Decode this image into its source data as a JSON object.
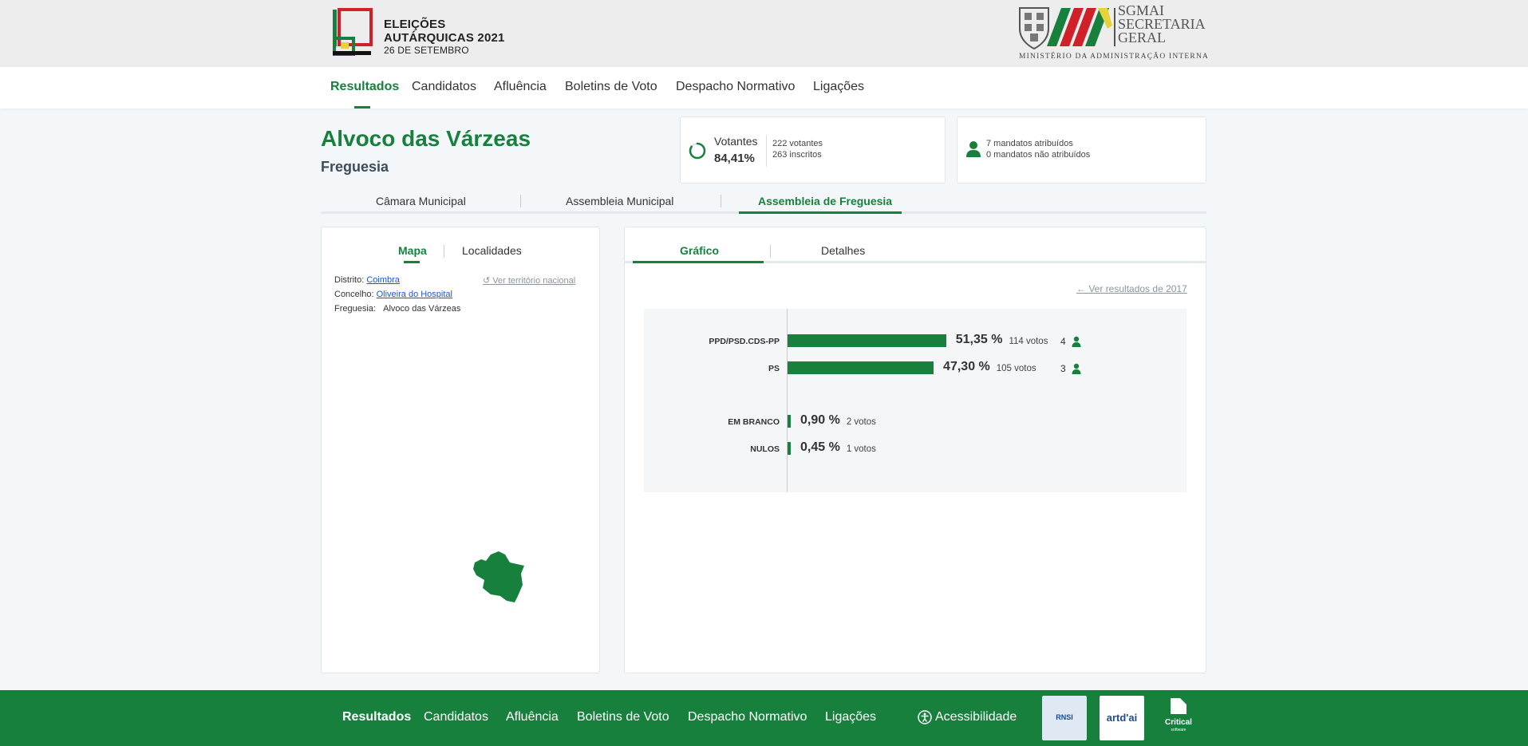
{
  "header": {
    "logo_line1": "ELEIÇÕES",
    "logo_line2": "AUTÁRQUICAS 2021",
    "logo_date": "26 DE SETEMBRO",
    "sgmai_line1": "SGMAI",
    "sgmai_line2": "SECRETARIA",
    "sgmai_line3": "GERAL",
    "sgmai_sub": "MINISTÉRIO DA ADMINISTRAÇÃO INTERNA"
  },
  "nav": {
    "items": [
      "Resultados",
      "Candidatos",
      "Afluência",
      "Boletins de Voto",
      "Despacho Normativo",
      "Ligações"
    ],
    "active": "Resultados"
  },
  "place": {
    "title": "Alvoco das Várzeas",
    "type": "Freguesia"
  },
  "turnout": {
    "label": "Votantes",
    "percent": "84,41%",
    "voters": "222 votantes",
    "registered": "263 inscritos",
    "fraction": 0.8441
  },
  "mandates_summary": {
    "assigned": "7 mandatos atribuídos",
    "unassigned": "0 mandatos não atribuídos"
  },
  "election_tabs": {
    "items": [
      "Câmara Municipal",
      "Assembleia Municipal",
      "Assembleia de Freguesia"
    ],
    "active": "Assembleia de Freguesia"
  },
  "left_panel": {
    "tabs": [
      "Mapa",
      "Localidades"
    ],
    "active": "Mapa",
    "distrito_label": "Distrito:",
    "distrito_value": "Coimbra",
    "concelho_label": "Concelho:",
    "concelho_value": "Oliveira do Hospital",
    "freguesia_label": "Freguesia:",
    "freguesia_value": "Alvoco das Várzeas",
    "ver_territorio": "Ver território nacional",
    "map_color": "#17803d"
  },
  "right_panel": {
    "tabs": [
      "Gráfico",
      "Detalhes"
    ],
    "active": "Gráfico",
    "prev_results": "Ver resultados de 2017"
  },
  "chart_data": {
    "type": "bar",
    "orientation": "horizontal",
    "categories": [
      "PPD/PSD.CDS-PP",
      "PS",
      "EM BRANCO",
      "NULOS"
    ],
    "values": [
      51.35,
      47.3,
      0.9,
      0.45
    ],
    "value_labels": [
      "51,35 %",
      "47,30 %",
      "0,90 %",
      "0,45 %"
    ],
    "votes_labels": [
      "114 votos",
      "105 votos",
      "2 votos",
      "1 votos"
    ],
    "mandates": [
      "4",
      "3",
      "",
      ""
    ],
    "bar_color": "#17803d"
  },
  "footer": {
    "items": [
      "Resultados",
      "Candidatos",
      "Afluência",
      "Boletins de Voto",
      "Despacho Normativo",
      "Ligações"
    ],
    "accessibility": "Acessibilidade",
    "partner1": "RNSI",
    "partner2": "artd'ai",
    "partner3": "Critical",
    "partner3_sub": "software"
  },
  "colors": {
    "accent": "#17803d",
    "link": "#1a56d6",
    "muted_link": "#8a95a0"
  }
}
